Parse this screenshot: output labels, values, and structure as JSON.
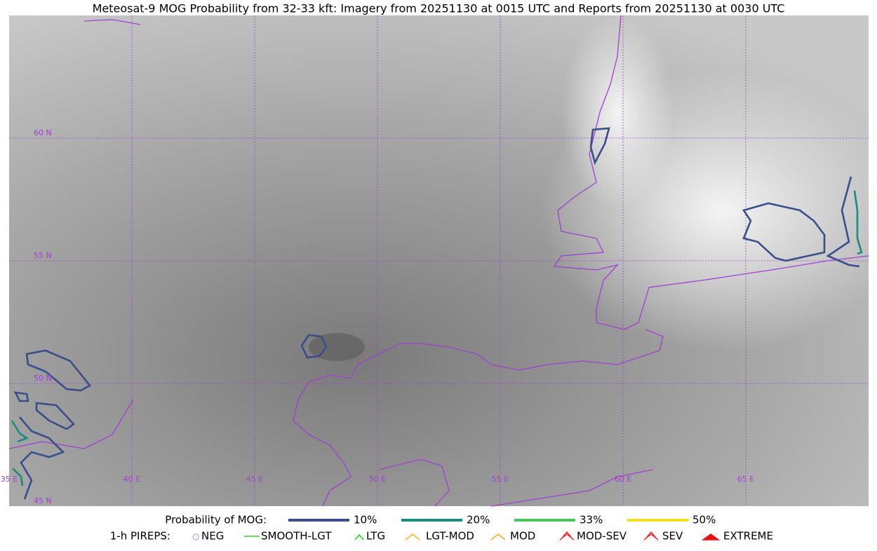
{
  "header": {
    "title": "Meteosat-9 MOG Probability from 32-33 kft: Imagery from 20251130 at 0015 UTC and Reports from 20251130 at 0030 UTC"
  },
  "map": {
    "lat_labels": [
      "60 N",
      "55 N",
      "50 N",
      "45 N"
    ],
    "lon_labels": [
      "35 E",
      "40 E",
      "45 E",
      "50 E",
      "55 E",
      "60 E",
      "65 E"
    ]
  },
  "legend": {
    "mog": {
      "label": "Probability of MOG:",
      "items": [
        {
          "label": "10%",
          "color": "#3a4f8a"
        },
        {
          "label": "20%",
          "color": "#1b8a80"
        },
        {
          "label": "33%",
          "color": "#4cc35a"
        },
        {
          "label": "50%",
          "color": "#f5e020"
        }
      ]
    },
    "pireps": {
      "label": "1-h PIREPS:",
      "items": [
        {
          "label": "NEG",
          "color": "#b8b8f0"
        },
        {
          "label": "SMOOTH-LGT",
          "color": "#33cc33"
        },
        {
          "label": "LTG",
          "color": "#22cc22"
        },
        {
          "label": "LGT-MOD",
          "color": "#f5b820"
        },
        {
          "label": "MOD",
          "color": "#f5a820"
        },
        {
          "label": "MOD-SEV",
          "color": "#e83030"
        },
        {
          "label": "SEV",
          "color": "#e83030"
        },
        {
          "label": "EXTREME",
          "color": "#e81010"
        }
      ]
    }
  }
}
